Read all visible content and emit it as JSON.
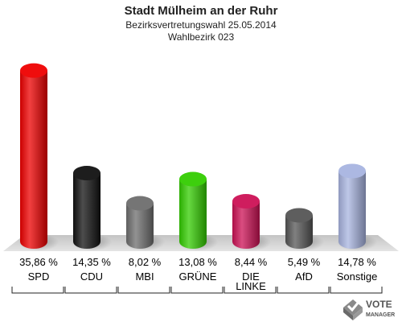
{
  "chart_data": {
    "type": "bar",
    "title": "Stadt Mülheim an der Ruhr",
    "subtitle": "Bezirksvertretungswahl 25.05.2014",
    "subtitle2": "Wahlbezirk 023",
    "categories": [
      [
        "SPD"
      ],
      [
        "CDU"
      ],
      [
        "MBI"
      ],
      [
        "GRÜNE"
      ],
      [
        "DIE",
        "LINKE"
      ],
      [
        "AfD"
      ],
      [
        "Sonstige"
      ]
    ],
    "values": [
      35.86,
      14.35,
      8.02,
      13.08,
      8.44,
      5.49,
      14.78
    ],
    "value_labels": [
      "35,86 %",
      "14,35 %",
      "8,02 %",
      "13,08 %",
      "8,44 %",
      "5,49 %",
      "14,78 %"
    ],
    "colors": [
      "#ee0000",
      "#111111",
      "#6e6e6e",
      "#33cc00",
      "#cc1155",
      "#555555",
      "#a8b4e0"
    ],
    "ylim": [
      0,
      38
    ]
  },
  "logo": {
    "line1": "VOTE",
    "line2": "MANAGER"
  }
}
